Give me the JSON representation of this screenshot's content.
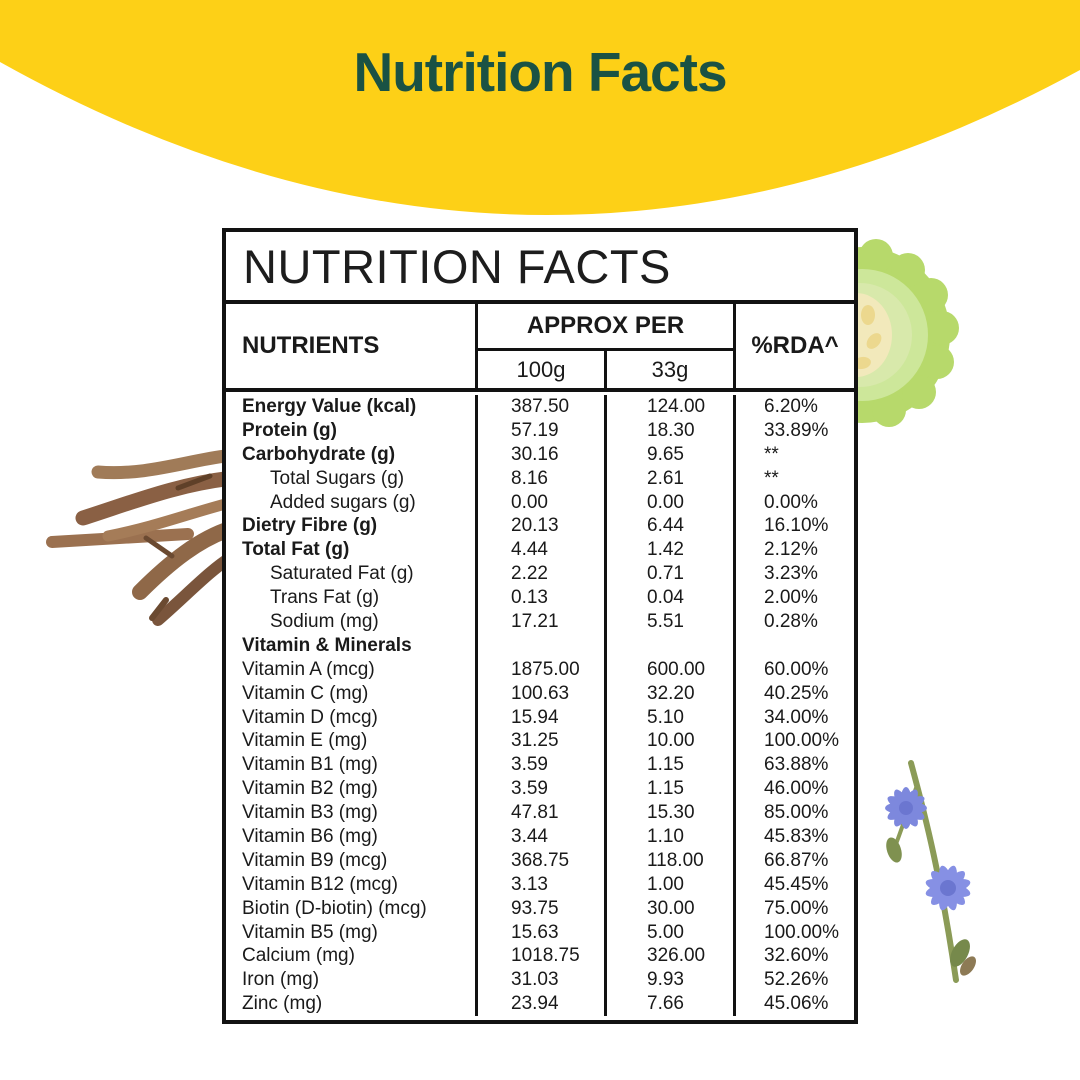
{
  "banner": {
    "title": "Nutrition Facts",
    "bg_color": "#FDD017",
    "text_color": "#1A5244"
  },
  "table": {
    "title": "NUTRITION FACTS",
    "header": {
      "nutrients": "NUTRIENTS",
      "approx_per": "APPROX PER",
      "col_100g": "100g",
      "col_33g": "33g",
      "rda": "%RDA^"
    },
    "rows": [
      {
        "label": "Energy Value (kcal)",
        "style": "bold",
        "v100": "387.50",
        "v33": "124.00",
        "rda": "6.20%"
      },
      {
        "label": "Protein (g)",
        "style": "bold",
        "v100": "57.19",
        "v33": "18.30",
        "rda": "33.89%"
      },
      {
        "label": "Carbohydrate (g)",
        "style": "bold",
        "v100": "30.16",
        "v33": "9.65",
        "rda": "**"
      },
      {
        "label": "Total Sugars (g)",
        "style": "indent",
        "v100": "8.16",
        "v33": "2.61",
        "rda": "**"
      },
      {
        "label": "Added sugars (g)",
        "style": "indent",
        "v100": "0.00",
        "v33": "0.00",
        "rda": "0.00%"
      },
      {
        "label": "Dietry Fibre (g)",
        "style": "bold",
        "v100": "20.13",
        "v33": "6.44",
        "rda": "16.10%"
      },
      {
        "label": "Total Fat (g)",
        "style": "bold",
        "v100": "4.44",
        "v33": "1.42",
        "rda": "2.12%"
      },
      {
        "label": "Saturated Fat (g)",
        "style": "indent",
        "v100": "2.22",
        "v33": "0.71",
        "rda": "3.23%"
      },
      {
        "label": "Trans Fat (g)",
        "style": "indent",
        "v100": "0.13",
        "v33": "0.04",
        "rda": "2.00%"
      },
      {
        "label": "Sodium (mg)",
        "style": "indent",
        "v100": "17.21",
        "v33": "5.51",
        "rda": "0.28%"
      },
      {
        "label": "Vitamin & Minerals",
        "style": "bold",
        "v100": "",
        "v33": "",
        "rda": ""
      },
      {
        "label": "Vitamin A (mcg)",
        "style": "",
        "v100": "1875.00",
        "v33": "600.00",
        "rda": "60.00%"
      },
      {
        "label": "Vitamin C (mg)",
        "style": "",
        "v100": "100.63",
        "v33": "32.20",
        "rda": "40.25%"
      },
      {
        "label": "Vitamin D (mcg)",
        "style": "",
        "v100": "15.94",
        "v33": "5.10",
        "rda": "34.00%"
      },
      {
        "label": "Vitamin E (mg)",
        "style": "",
        "v100": "31.25",
        "v33": "10.00",
        "rda": "100.00%"
      },
      {
        "label": "Vitamin B1 (mg)",
        "style": "",
        "v100": "3.59",
        "v33": "1.15",
        "rda": "63.88%"
      },
      {
        "label": "Vitamin B2 (mg)",
        "style": "",
        "v100": "3.59",
        "v33": "1.15",
        "rda": "46.00%"
      },
      {
        "label": "Vitamin B3 (mg)",
        "style": "",
        "v100": "47.81",
        "v33": "15.30",
        "rda": "85.00%"
      },
      {
        "label": "Vitamin B6 (mg)",
        "style": "",
        "v100": "3.44",
        "v33": "1.10",
        "rda": "45.83%"
      },
      {
        "label": "Vitamin B9 (mcg)",
        "style": "",
        "v100": "368.75",
        "v33": "118.00",
        "rda": "66.87%"
      },
      {
        "label": "Vitamin B12 (mcg)",
        "style": "",
        "v100": "3.13",
        "v33": "1.00",
        "rda": "45.45%"
      },
      {
        "label": "Biotin (D-biotin) (mcg)",
        "style": "",
        "v100": "93.75",
        "v33": "30.00",
        "rda": "75.00%"
      },
      {
        "label": "Vitamin B5 (mg)",
        "style": "",
        "v100": "15.63",
        "v33": "5.00",
        "rda": "100.00%"
      },
      {
        "label": "Calcium (mg)",
        "style": "",
        "v100": "1018.75",
        "v33": "326.00",
        "rda": "32.60%"
      },
      {
        "label": "Iron (mg)",
        "style": "",
        "v100": "31.03",
        "v33": "9.93",
        "rda": "52.26%"
      },
      {
        "label": "Zinc (mg)",
        "style": "",
        "v100": "23.94",
        "v33": "7.66",
        "rda": "45.06%"
      }
    ]
  },
  "decorations": {
    "slice": {
      "name": "gourd-slice-image",
      "skin": "#b7d96b",
      "flesh": "#cfe59b",
      "core": "#f2e9bb"
    },
    "roots": {
      "name": "dried-roots-image",
      "color": "#9b7150"
    },
    "flowers": {
      "name": "chicory-flowers-image",
      "petal": "#7d88dd",
      "stem": "#8b9b57"
    }
  }
}
